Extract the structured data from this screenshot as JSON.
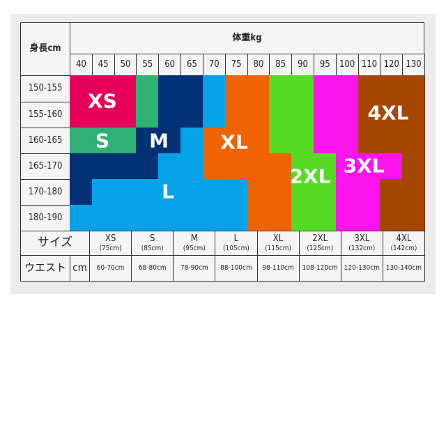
{
  "height_header": "身長cm",
  "weight_header": "体重kg",
  "weights": [
    "40",
    "45",
    "50",
    "55",
    "60",
    "65",
    "70",
    "75",
    "80",
    "85",
    "90",
    "95",
    "100",
    "110",
    "120",
    "130"
  ],
  "colors": {
    "XS": "#e6005a",
    "S": "#2fb074",
    "M": "#033175",
    "L": "#05a2e8",
    "XL": "#ef6400",
    "2XL": "#55dc22",
    "3XL": "#fc14ee",
    "4XL": "#a54703"
  },
  "rows": [
    {
      "height": "150-155",
      "sizes": [
        "XS",
        "XS",
        "XS",
        "S",
        "M",
        "M",
        "L",
        "XL",
        "XL",
        "2XL",
        "2XL",
        "3XL",
        "3XL",
        "4XL",
        "4XL",
        "4XL"
      ]
    },
    {
      "height": "155-160",
      "sizes": [
        "XS",
        "XS",
        "XS",
        "S",
        "M",
        "M",
        "L",
        "XL",
        "XL",
        "2XL",
        "2XL",
        "3XL",
        "3XL",
        "4XL",
        "4XL",
        "4XL"
      ]
    },
    {
      "height": "160-165",
      "sizes": [
        "S",
        "S",
        "S",
        "M",
        "M",
        "L",
        "XL",
        "XL",
        "XL",
        "2XL",
        "2XL",
        "3XL",
        "3XL",
        "4XL",
        "4XL",
        "4XL"
      ]
    },
    {
      "height": "165-170",
      "sizes": [
        "M",
        "M",
        "M",
        "M",
        "L",
        "L",
        "XL",
        "XL",
        "XL",
        "XL",
        "2XL",
        "2XL",
        "3XL",
        "3XL",
        "3XL",
        "4XL"
      ]
    },
    {
      "height": "170-180",
      "sizes": [
        "M",
        "L",
        "L",
        "L",
        "L",
        "L",
        "L",
        "L",
        "XL",
        "XL",
        "2XL",
        "2XL",
        "3XL",
        "3XL",
        "4XL",
        "4XL"
      ]
    },
    {
      "height": "180-190",
      "sizes": [
        "L",
        "L",
        "L",
        "L",
        "L",
        "L",
        "L",
        "L",
        "XL",
        "XL",
        "2XL",
        "2XL",
        "3XL",
        "3XL",
        "4XL",
        "4XL"
      ]
    }
  ],
  "overlay_labels": [
    "XS",
    "S",
    "M",
    "XL",
    "4XL",
    "2XL",
    "3XL",
    "L"
  ],
  "size_row_label": "サイズ",
  "sizes": [
    {
      "name": "XS",
      "length": "(75cm)",
      "waist": "60-70cm"
    },
    {
      "name": "S",
      "length": "(85cm)",
      "waist": "68-80cm"
    },
    {
      "name": "M",
      "length": "(95cm)",
      "waist": "78-90cm"
    },
    {
      "name": "L",
      "length": "(105cm)",
      "waist": "88-100cm"
    },
    {
      "name": "XL",
      "length": "(115cm)",
      "waist": "98-110cm"
    },
    {
      "name": "2XL",
      "length": "(125cm)",
      "waist": "108-120cm"
    },
    {
      "name": "3XL",
      "length": "(132cm)",
      "waist": "120-130cm"
    },
    {
      "name": "4XL",
      "length": "(142cm)",
      "waist": "130-140cm"
    }
  ],
  "waist_row_label": "ウエスト",
  "waist_unit": "cm"
}
